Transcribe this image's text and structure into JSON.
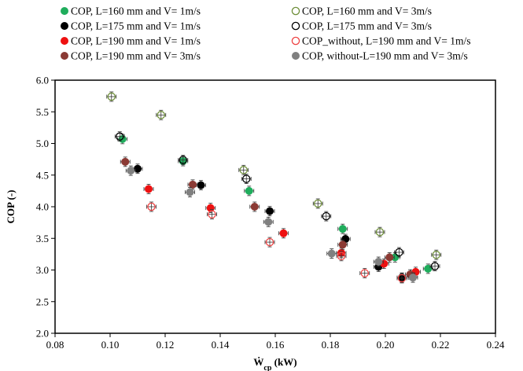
{
  "chart_data": {
    "type": "scatter",
    "xlabel_main": "Ẇ",
    "xlabel_sub": "cp",
    "xlabel_unit": " (kW)",
    "ylabel": "COP (-)",
    "xlim": [
      0.08,
      0.24
    ],
    "ylim": [
      2.0,
      6.0
    ],
    "x_ticks": [
      "0.08",
      "0.10",
      "0.12",
      "0.14",
      "0.16",
      "0.18",
      "0.20",
      "0.22",
      "0.24"
    ],
    "y_ticks": [
      "2.0",
      "2.5",
      "3.0",
      "3.5",
      "4.0",
      "4.5",
      "5.0",
      "5.5",
      "6.0"
    ],
    "grid": false,
    "legend_position": "top",
    "series": [
      {
        "name": "COP, L=160 mm and V= 1m/s",
        "color": "#1fad5c",
        "filled": true,
        "points": [
          [
            0.1045,
            5.07
          ],
          [
            0.1265,
            4.72
          ],
          [
            0.1505,
            4.25
          ],
          [
            0.1845,
            3.65
          ],
          [
            0.2035,
            3.2
          ],
          [
            0.2155,
            3.02
          ]
        ]
      },
      {
        "name": "COP, L=160 mm and V= 3m/s",
        "color": "#6f8f3a",
        "filled": false,
        "points": [
          [
            0.1005,
            5.74
          ],
          [
            0.1185,
            5.45
          ],
          [
            0.1485,
            4.58
          ],
          [
            0.1755,
            4.05
          ],
          [
            0.198,
            3.6
          ],
          [
            0.2185,
            3.24
          ]
        ]
      },
      {
        "name": "COP, L=175 mm and V= 1m/s",
        "color": "#000000",
        "filled": true,
        "points": [
          [
            0.11,
            4.6
          ],
          [
            0.133,
            4.34
          ],
          [
            0.158,
            3.93
          ],
          [
            0.1855,
            3.49
          ],
          [
            0.1975,
            3.05
          ],
          [
            0.206,
            2.88
          ]
        ]
      },
      {
        "name": "COP, L=175 mm and V= 3m/s",
        "color": "#000000",
        "filled": false,
        "points": [
          [
            0.1035,
            5.11
          ],
          [
            0.1265,
            4.74
          ],
          [
            0.1495,
            4.44
          ],
          [
            0.1785,
            3.85
          ],
          [
            0.205,
            3.28
          ],
          [
            0.218,
            3.06
          ]
        ]
      },
      {
        "name": "COP, L=190 mm and V= 1m/s",
        "color": "#ee1111",
        "filled": true,
        "points": [
          [
            0.114,
            4.28
          ],
          [
            0.1365,
            3.98
          ],
          [
            0.163,
            3.58
          ],
          [
            0.184,
            3.27
          ],
          [
            0.1995,
            3.1
          ],
          [
            0.211,
            2.97
          ]
        ]
      },
      {
        "name": "COP_without, L=190 mm and V= 1m/s",
        "color": "#ee4444",
        "filled": false,
        "points": [
          [
            0.115,
            4.0
          ],
          [
            0.137,
            3.88
          ],
          [
            0.158,
            3.44
          ],
          [
            0.184,
            3.22
          ],
          [
            0.1925,
            2.95
          ],
          [
            0.206,
            2.87
          ]
        ]
      },
      {
        "name": "COP, L=190 mm and V= 3m/s",
        "color": "#8b3a34",
        "filled": true,
        "points": [
          [
            0.1055,
            4.71
          ],
          [
            0.13,
            4.35
          ],
          [
            0.1525,
            4.0
          ],
          [
            0.1845,
            3.4
          ],
          [
            0.2015,
            3.2
          ],
          [
            0.209,
            2.93
          ]
        ]
      },
      {
        "name": "COP, without-L=190 mm and V= 3m/s",
        "color": "#808080",
        "filled": true,
        "points": [
          [
            0.1075,
            4.57
          ],
          [
            0.129,
            4.23
          ],
          [
            0.1575,
            3.76
          ],
          [
            0.1805,
            3.26
          ],
          [
            0.1975,
            3.13
          ],
          [
            0.21,
            2.88
          ]
        ]
      }
    ]
  }
}
